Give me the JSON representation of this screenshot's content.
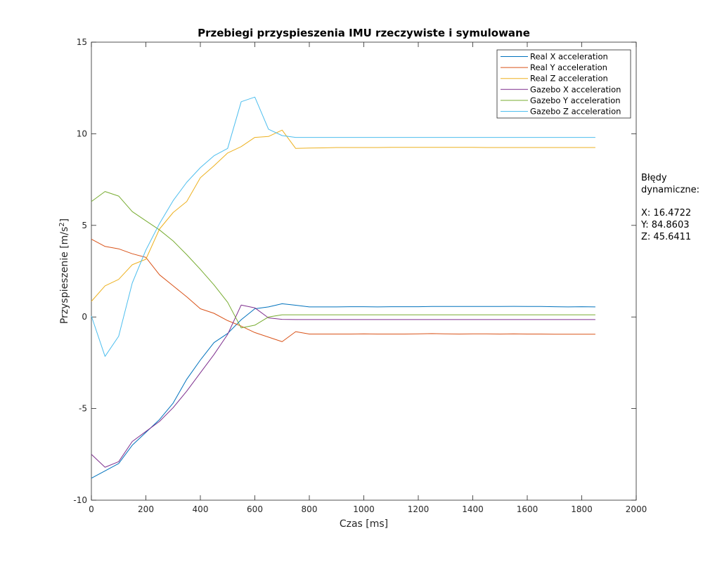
{
  "chart_data": {
    "type": "line",
    "title": "Przebiegi przyspieszenia IMU rzeczywiste i symulowane",
    "xlabel": "Czas [ms]",
    "ylabel_main": "Przyspieszenie [m/s",
    "ylabel_sup": "2",
    "ylabel_end": "]",
    "xlim": [
      0,
      2000
    ],
    "ylim": [
      -10,
      15
    ],
    "xticks": [
      0,
      200,
      400,
      600,
      800,
      1000,
      1200,
      1400,
      1600,
      1800,
      2000
    ],
    "yticks": [
      -10,
      -5,
      0,
      5,
      10,
      15
    ],
    "grid": false,
    "legend_position": "top-right",
    "x": [
      0,
      50,
      100,
      150,
      200,
      250,
      300,
      350,
      400,
      450,
      500,
      550,
      600,
      650,
      700,
      750,
      800,
      850,
      900,
      950,
      1000,
      1050,
      1100,
      1150,
      1200,
      1250,
      1300,
      1350,
      1400,
      1450,
      1500,
      1550,
      1600,
      1650,
      1700,
      1750,
      1800,
      1850
    ],
    "series": [
      {
        "name": "Real X acceleration",
        "color": "#0072BD",
        "values": [
          -8.8,
          -8.4,
          -8.0,
          -7.0,
          -6.3,
          -5.6,
          -4.7,
          -3.4,
          -2.35,
          -1.4,
          -0.9,
          -0.15,
          0.45,
          0.55,
          0.72,
          0.64,
          0.55,
          0.55,
          0.55,
          0.56,
          0.56,
          0.55,
          0.56,
          0.56,
          0.56,
          0.57,
          0.57,
          0.57,
          0.57,
          0.57,
          0.57,
          0.58,
          0.57,
          0.57,
          0.56,
          0.55,
          0.56,
          0.55
        ]
      },
      {
        "name": "Real Y acceleration",
        "color": "#D95319",
        "values": [
          4.25,
          3.85,
          3.72,
          3.45,
          3.25,
          2.3,
          1.7,
          1.1,
          0.45,
          0.2,
          -0.2,
          -0.5,
          -0.85,
          -1.1,
          -1.35,
          -0.8,
          -0.93,
          -0.93,
          -0.93,
          -0.93,
          -0.92,
          -0.93,
          -0.93,
          -0.93,
          -0.92,
          -0.91,
          -0.92,
          -0.93,
          -0.92,
          -0.92,
          -0.93,
          -0.92,
          -0.93,
          -0.93,
          -0.94,
          -0.94,
          -0.94,
          -0.94
        ]
      },
      {
        "name": "Real Z acceleration",
        "color": "#EDB120",
        "values": [
          0.85,
          1.7,
          2.05,
          2.85,
          3.15,
          4.8,
          5.7,
          6.3,
          7.6,
          8.25,
          8.95,
          9.3,
          9.8,
          9.85,
          10.2,
          9.2,
          9.22,
          9.23,
          9.25,
          9.25,
          9.25,
          9.25,
          9.26,
          9.26,
          9.26,
          9.26,
          9.26,
          9.26,
          9.26,
          9.25,
          9.25,
          9.25,
          9.25,
          9.25,
          9.25,
          9.25,
          9.25,
          9.25
        ]
      },
      {
        "name": "Gazebo X acceleration",
        "color": "#7E2F8E",
        "values": [
          -7.5,
          -8.2,
          -7.9,
          -6.8,
          -6.25,
          -5.7,
          -4.95,
          -4.05,
          -3.05,
          -2.05,
          -0.95,
          0.65,
          0.5,
          -0.05,
          -0.13,
          -0.14,
          -0.14,
          -0.14,
          -0.14,
          -0.14,
          -0.14,
          -0.14,
          -0.14,
          -0.14,
          -0.14,
          -0.14,
          -0.14,
          -0.14,
          -0.14,
          -0.14,
          -0.14,
          -0.14,
          -0.14,
          -0.14,
          -0.14,
          -0.14,
          -0.14,
          -0.14
        ]
      },
      {
        "name": "Gazebo Y acceleration",
        "color": "#77AC30",
        "values": [
          6.3,
          6.85,
          6.6,
          5.75,
          5.25,
          4.75,
          4.15,
          3.4,
          2.6,
          1.75,
          0.8,
          -0.6,
          -0.45,
          0.0,
          0.12,
          0.12,
          0.12,
          0.12,
          0.12,
          0.12,
          0.12,
          0.12,
          0.12,
          0.12,
          0.12,
          0.12,
          0.12,
          0.12,
          0.12,
          0.12,
          0.12,
          0.12,
          0.12,
          0.12,
          0.12,
          0.12,
          0.12,
          0.12
        ]
      },
      {
        "name": "Gazebo Z acceleration",
        "color": "#4DBEEE",
        "values": [
          0.05,
          -2.15,
          -1.05,
          1.85,
          3.65,
          5.1,
          6.35,
          7.35,
          8.15,
          8.8,
          9.2,
          11.75,
          12.0,
          10.25,
          9.9,
          9.8,
          9.8,
          9.8,
          9.8,
          9.8,
          9.8,
          9.8,
          9.8,
          9.8,
          9.8,
          9.8,
          9.8,
          9.8,
          9.8,
          9.8,
          9.8,
          9.8,
          9.8,
          9.8,
          9.8,
          9.8,
          9.8,
          9.8
        ]
      }
    ],
    "annotation": {
      "line1": "Błędy",
      "line2": "dynamiczne:",
      "x_line": "X: 16.4722",
      "y_line": "Y: 84.8603",
      "z_line": "Z: 45.6411"
    }
  }
}
